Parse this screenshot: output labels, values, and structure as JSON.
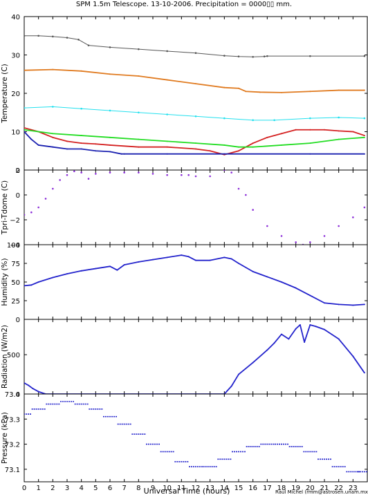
{
  "title": "SPM 1.5m Telescope. 13-10-2006. Precipitation = 0000▯▯ mm.",
  "xlabel": "Universal Time (hours)",
  "credit": "Raul Michel (rmm@astrosen.unam.mx)",
  "colors": {
    "gray": "#555555",
    "orange": "#e07a1f",
    "cyan": "#22e0ee",
    "red": "#d42020",
    "green": "#22dd22",
    "navy": "#1a20b0",
    "purple": "#8a2ad8",
    "blue": "#2222cc"
  },
  "chart_data": [
    {
      "type": "line",
      "ylabel": "Temperature (C)",
      "ylim": [
        0,
        40
      ],
      "yticks": [
        "0",
        "10",
        "20",
        "30",
        "40"
      ],
      "series": [
        {
          "color": "gray",
          "style": "points",
          "x": [
            0,
            1,
            2,
            3,
            3.8,
            4.5,
            6,
            8,
            10,
            12,
            14,
            15,
            16,
            16.8,
            17,
            20,
            23.8
          ],
          "y": [
            35,
            35,
            34.8,
            34.5,
            34,
            32.5,
            32,
            31.5,
            31,
            30.5,
            29.8,
            29.6,
            29.5,
            29.6,
            29.7,
            29.7,
            29.7
          ]
        },
        {
          "color": "orange",
          "style": "line",
          "x": [
            0,
            2,
            4,
            6,
            8,
            10,
            12,
            14,
            15,
            15.5,
            16.5,
            18,
            20,
            22,
            23.8
          ],
          "y": [
            26,
            26.2,
            25.8,
            25,
            24.5,
            23.5,
            22.5,
            21.5,
            21.3,
            20.5,
            20.3,
            20.2,
            20.5,
            20.8,
            20.8
          ]
        },
        {
          "color": "cyan",
          "style": "points",
          "x": [
            0,
            2,
            4,
            6,
            8,
            10,
            12,
            14,
            16,
            17.5,
            20,
            22,
            23.8
          ],
          "y": [
            16.2,
            16.5,
            16,
            15.5,
            15,
            14.5,
            14,
            13.5,
            13,
            13,
            13.5,
            13.7,
            13.5
          ]
        },
        {
          "color": "red",
          "style": "line",
          "x": [
            0,
            1,
            2,
            3,
            4,
            5,
            6,
            8,
            10,
            12,
            13,
            14,
            15,
            16,
            17,
            18,
            19,
            20,
            21,
            22,
            23,
            23.8
          ],
          "y": [
            11,
            10,
            8.5,
            7.5,
            7,
            6.8,
            6.5,
            6,
            6,
            5.5,
            5,
            4,
            5,
            7,
            8.5,
            9.5,
            10.5,
            10.5,
            10.5,
            10.2,
            10,
            9
          ]
        },
        {
          "color": "green",
          "style": "line",
          "x": [
            0,
            2,
            4,
            6,
            8,
            10,
            12,
            14,
            15,
            16,
            18,
            20,
            22,
            23.8
          ],
          "y": [
            10.5,
            9.5,
            9,
            8.5,
            8,
            7.5,
            7,
            6.5,
            6,
            6,
            6.5,
            7,
            8,
            8.5
          ]
        },
        {
          "color": "navy",
          "style": "line",
          "x": [
            0,
            0.5,
            1,
            2,
            3,
            4,
            5,
            6,
            6.8,
            7,
            10,
            14,
            20,
            23.8
          ],
          "y": [
            10,
            8,
            6.5,
            6,
            5.5,
            5.5,
            5,
            4.8,
            4.2,
            4.2,
            4.2,
            4.2,
            4.2,
            4.2
          ]
        }
      ]
    },
    {
      "type": "scatter",
      "ylabel": "Tpri-Tdome (C)",
      "ylim": [
        -4,
        2
      ],
      "yticks": [
        "−4",
        "−2",
        "0",
        "2"
      ],
      "series": [
        {
          "color": "purple",
          "x": [
            0,
            0.5,
            1,
            1.5,
            2,
            2.5,
            3,
            3.5,
            4,
            4.5,
            5,
            6,
            7,
            8,
            9,
            10,
            11,
            11.5,
            12,
            13,
            14,
            14.5,
            15,
            15.5,
            16,
            17,
            18,
            19,
            19.5,
            20,
            21,
            22,
            23,
            23.8
          ],
          "y": [
            -1.6,
            -1.4,
            -1,
            -0.3,
            0.5,
            1.2,
            1.6,
            1.9,
            1.8,
            1.3,
            1.7,
            1.8,
            1.8,
            1.8,
            1.7,
            1.6,
            1.6,
            1.6,
            1.5,
            1.5,
            2.0,
            1.8,
            0.5,
            0,
            -1.2,
            -2.5,
            -3.3,
            -3.8,
            -4.0,
            -3.8,
            -3.3,
            -2.5,
            -1.8,
            -1
          ]
        }
      ]
    },
    {
      "type": "line",
      "ylabel": "Humidity (%)",
      "ylim": [
        0,
        100
      ],
      "yticks": [
        "0",
        "25",
        "50",
        "75",
        "100"
      ],
      "series": [
        {
          "color": "blue",
          "x": [
            0,
            0.5,
            1,
            2,
            3,
            4,
            5,
            6,
            6.5,
            7,
            8,
            9,
            10,
            11,
            11.5,
            12,
            13,
            14,
            14.5,
            15,
            16,
            17,
            18,
            19,
            20,
            21,
            22,
            23,
            23.8
          ],
          "y": [
            45,
            46,
            50,
            56,
            61,
            65,
            68,
            71,
            66,
            73,
            77,
            80,
            83,
            86,
            84,
            79,
            79,
            83,
            81,
            75,
            64,
            57,
            50,
            42,
            32,
            22,
            20,
            19,
            20
          ]
        }
      ]
    },
    {
      "type": "line",
      "ylabel": "Radiation (W/m2)",
      "ylim": [
        0,
        950
      ],
      "yticks": [
        "0",
        "500"
      ],
      "series": [
        {
          "color": "blue",
          "x": [
            0,
            0.3,
            0.6,
            1,
            1.5,
            5,
            10,
            14,
            14.5,
            15,
            16,
            17,
            17.5,
            18,
            18.5,
            19,
            19.3,
            19.6,
            20,
            20.4,
            21,
            22,
            23,
            23.8
          ],
          "y": [
            140,
            110,
            70,
            30,
            0,
            0,
            0,
            0,
            100,
            250,
            400,
            560,
            650,
            760,
            700,
            830,
            880,
            660,
            880,
            860,
            820,
            700,
            480,
            270
          ]
        }
      ]
    },
    {
      "type": "scatter",
      "ylabel": "Pressure (kPa)",
      "ylim": [
        73.05,
        73.4
      ],
      "yticks": [
        "73.1",
        "73.2",
        "73.3",
        "73.4"
      ],
      "series": [
        {
          "color": "blue",
          "x": [
            0,
            1,
            2,
            3,
            4,
            5,
            6,
            7,
            8,
            9,
            10,
            11,
            12,
            13,
            14,
            15,
            16,
            17,
            18,
            19,
            20,
            21,
            22,
            23,
            23.8
          ],
          "y": [
            73.32,
            73.34,
            73.36,
            73.37,
            73.36,
            73.34,
            73.31,
            73.28,
            73.24,
            73.2,
            73.17,
            73.13,
            73.11,
            73.11,
            73.14,
            73.17,
            73.19,
            73.2,
            73.2,
            73.19,
            73.17,
            73.14,
            73.11,
            73.09,
            73.09
          ]
        }
      ]
    }
  ]
}
